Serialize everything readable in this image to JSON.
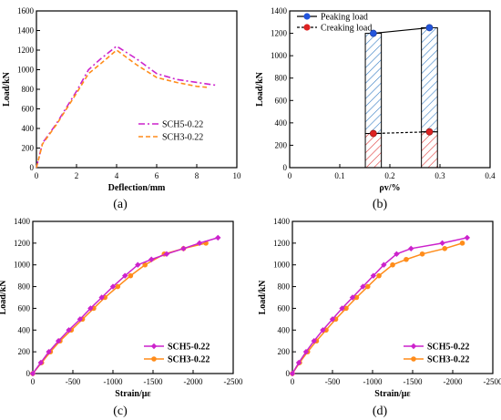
{
  "figure": {
    "panels": [
      {
        "caption": "(a)"
      },
      {
        "caption": "(b)"
      },
      {
        "caption": "(c)"
      },
      {
        "caption": "(d)"
      }
    ]
  },
  "colors": {
    "sch5": "#cc22cc",
    "sch3": "#ff8c1a",
    "peak_marker": "#2255dd",
    "crack_marker": "#dd2222",
    "axis": "#000000"
  },
  "chart_data": [
    {
      "type": "line",
      "panel": "(a)",
      "xlabel": "Deflection/mm",
      "ylabel": "Load/kN",
      "xlim": [
        0,
        10
      ],
      "ylim": [
        0,
        1600
      ],
      "xticks": [
        0,
        2,
        4,
        6,
        8,
        10
      ],
      "yticks": [
        0,
        200,
        400,
        600,
        800,
        1000,
        1200,
        1400,
        1600
      ],
      "legend_position": "bottom-right",
      "series": [
        {
          "name": "SCH5-0.22",
          "style": "dash-dot",
          "color": "#cc22cc",
          "x": [
            0,
            0.3,
            1,
            2,
            2.6,
            3.2,
            4,
            5,
            6,
            7,
            8,
            9
          ],
          "y": [
            0,
            250,
            450,
            780,
            1000,
            1110,
            1240,
            1110,
            960,
            900,
            870,
            840
          ]
        },
        {
          "name": "SCH3-0.22",
          "style": "dash",
          "color": "#ff8c1a",
          "x": [
            0,
            0.3,
            1,
            2,
            2.6,
            3.2,
            4,
            5,
            6,
            7,
            8,
            8.5
          ],
          "y": [
            0,
            240,
            440,
            760,
            960,
            1060,
            1200,
            1050,
            920,
            870,
            830,
            820
          ]
        }
      ]
    },
    {
      "type": "bar",
      "panel": "(b)",
      "xlabel": "ρv/%",
      "ylabel": "Load/kN",
      "xlim": [
        0,
        0.4
      ],
      "ylim": [
        0,
        1400
      ],
      "xticks": [
        0,
        0.1,
        0.2,
        0.3,
        0.4
      ],
      "yticks": [
        0,
        200,
        400,
        600,
        800,
        1000,
        1200,
        1400
      ],
      "legend_position": "top-left",
      "categories": [
        0.167,
        0.279
      ],
      "series": [
        {
          "name": "Peaking load",
          "marker": "blue-circle",
          "values": [
            1200,
            1250
          ]
        },
        {
          "name": "Creaking load",
          "marker": "red-circle",
          "values": [
            305,
            320
          ]
        }
      ]
    },
    {
      "type": "line",
      "panel": "(c)",
      "xlabel": "Strain/με",
      "ylabel": "Load/kN",
      "xlim": [
        0,
        -2500
      ],
      "ylim": [
        0,
        1400
      ],
      "xticks": [
        0,
        -500,
        -1000,
        -1500,
        -2000,
        -2500
      ],
      "yticks": [
        0,
        200,
        400,
        600,
        800,
        1000,
        1200,
        1400
      ],
      "legend_position": "bottom-right",
      "series": [
        {
          "name": "SCH5-0.22",
          "marker": "diamond",
          "color": "#cc22cc",
          "x": [
            0,
            -100,
            -200,
            -320,
            -450,
            -590,
            -720,
            -860,
            -1000,
            -1150,
            -1310,
            -1480,
            -1670,
            -1880,
            -2080,
            -2310
          ],
          "y": [
            0,
            100,
            200,
            300,
            400,
            500,
            600,
            700,
            800,
            900,
            1000,
            1050,
            1100,
            1150,
            1200,
            1250
          ]
        },
        {
          "name": "SCH3-0.22",
          "marker": "circle",
          "color": "#ff8c1a",
          "x": [
            0,
            -110,
            -220,
            -340,
            -480,
            -620,
            -760,
            -900,
            -1060,
            -1220,
            -1400,
            -1640,
            -1880,
            -2160
          ],
          "y": [
            0,
            100,
            200,
            300,
            400,
            500,
            600,
            700,
            800,
            900,
            1000,
            1100,
            1150,
            1200
          ]
        }
      ]
    },
    {
      "type": "line",
      "panel": "(d)",
      "xlabel": "Strain/με",
      "ylabel": "Load/kN",
      "xlim": [
        0,
        -2500
      ],
      "ylim": [
        0,
        1400
      ],
      "xticks": [
        0,
        -500,
        -1000,
        -1500,
        -2000,
        -2500
      ],
      "yticks": [
        0,
        200,
        400,
        600,
        800,
        1000,
        1200,
        1400
      ],
      "legend_position": "bottom-right",
      "series": [
        {
          "name": "SCH5-0.22",
          "marker": "diamond",
          "color": "#cc22cc",
          "x": [
            0,
            -80,
            -170,
            -270,
            -380,
            -500,
            -620,
            -750,
            -880,
            -1010,
            -1140,
            -1300,
            -1480,
            -1870,
            -2180
          ],
          "y": [
            0,
            100,
            200,
            300,
            400,
            500,
            600,
            700,
            800,
            900,
            1000,
            1100,
            1150,
            1200,
            1250
          ]
        },
        {
          "name": "SCH3-0.22",
          "marker": "circle",
          "color": "#ff8c1a",
          "x": [
            0,
            -90,
            -190,
            -300,
            -420,
            -540,
            -670,
            -800,
            -940,
            -1080,
            -1250,
            -1420,
            -1620,
            -1900,
            -2120
          ],
          "y": [
            0,
            100,
            200,
            300,
            400,
            500,
            600,
            700,
            800,
            900,
            1000,
            1050,
            1100,
            1150,
            1200
          ]
        }
      ]
    }
  ]
}
